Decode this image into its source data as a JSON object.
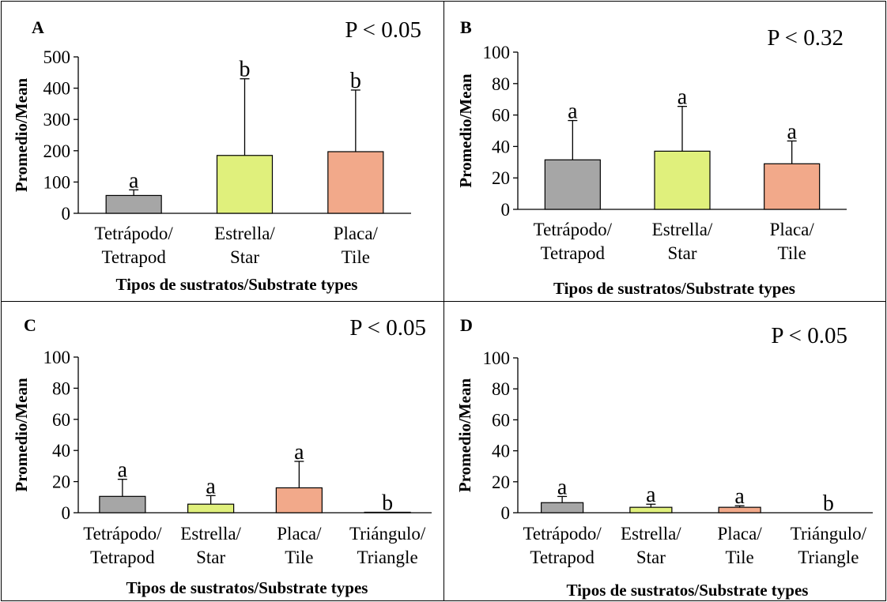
{
  "chart_data": [
    {
      "panel": "A",
      "type": "bar",
      "p_value": "P < 0.05",
      "ylabel": "Promedio/Mean",
      "xlabel": "Tipos de sustratos/Substrate types",
      "ylim": [
        0,
        500
      ],
      "yticks": [
        0,
        100,
        200,
        300,
        400,
        500
      ],
      "categories": [
        [
          "Tetrápodo/",
          "Tetrapod"
        ],
        [
          "Estrella/",
          "Star"
        ],
        [
          "Placa/",
          "Tile"
        ]
      ],
      "values": [
        57,
        185,
        197
      ],
      "errors": [
        18,
        245,
        197
      ],
      "letters": [
        "a",
        "b",
        "b"
      ],
      "colors": [
        "#a6a6a6",
        "#e0f07c",
        "#f2a98a"
      ]
    },
    {
      "panel": "B",
      "type": "bar",
      "p_value": "P < 0.32",
      "ylabel": "Promedio/Mean",
      "xlabel": "Tipos de sustratos/Substrate types",
      "ylim": [
        0,
        100
      ],
      "yticks": [
        0,
        20,
        40,
        60,
        80,
        100
      ],
      "categories": [
        [
          "Tetrápodo/",
          "Tetrapod"
        ],
        [
          "Estrella/",
          "Star"
        ],
        [
          "Placa/",
          "Tile"
        ]
      ],
      "values": [
        31.5,
        37,
        29
      ],
      "errors": [
        25,
        28.5,
        14.5
      ],
      "letters": [
        "a",
        "a",
        "a"
      ],
      "colors": [
        "#a6a6a6",
        "#e0f07c",
        "#f2a98a"
      ]
    },
    {
      "panel": "C",
      "type": "bar",
      "p_value": "P < 0.05",
      "ylabel": "Promedio/Mean",
      "xlabel": "Tipos de sustratos/Substrate types",
      "ylim": [
        0,
        100
      ],
      "yticks": [
        0,
        20,
        40,
        60,
        80,
        100
      ],
      "categories": [
        [
          "Tetrápodo/",
          "Tetrapod"
        ],
        [
          "Estrella/",
          "Star"
        ],
        [
          "Placa/",
          "Tile"
        ],
        [
          "Triángulo/",
          "Triangle"
        ]
      ],
      "values": [
        10.5,
        5.5,
        16,
        0.3
      ],
      "errors": [
        11,
        5.5,
        17,
        0
      ],
      "letters": [
        "a",
        "a",
        "a",
        "b"
      ],
      "colors": [
        "#a6a6a6",
        "#e0f07c",
        "#f2a98a",
        "#ffffff"
      ]
    },
    {
      "panel": "D",
      "type": "bar",
      "p_value": "P < 0.05",
      "ylabel": "Promedio/Mean",
      "xlabel": "Tipos de sustratos/Substrate types",
      "ylim": [
        0,
        100
      ],
      "yticks": [
        0,
        20,
        40,
        60,
        80,
        100
      ],
      "categories": [
        [
          "Tetrápodo/",
          "Tetrapod"
        ],
        [
          "Estrella/",
          "Star"
        ],
        [
          "Placa/",
          "Tile"
        ],
        [
          "Triángulo/",
          "Triangle"
        ]
      ],
      "values": [
        6.5,
        3.5,
        3.5,
        0
      ],
      "errors": [
        4,
        2,
        1,
        0
      ],
      "letters": [
        "a",
        "a",
        "a",
        "b"
      ],
      "colors": [
        "#a6a6a6",
        "#e0f07c",
        "#f2a98a",
        "#ffffff"
      ]
    }
  ]
}
